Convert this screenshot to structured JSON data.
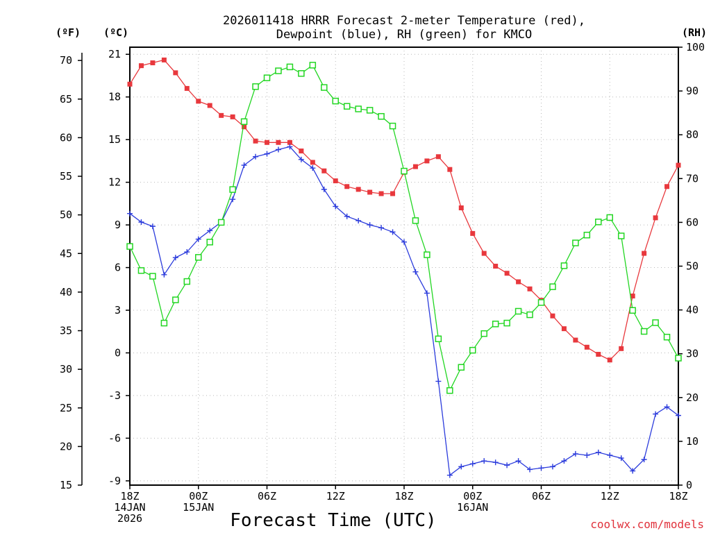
{
  "chart_data": {
    "type": "line",
    "title_lines": [
      "2026011418 HRRR Forecast 2-meter Temperature (red),",
      "Dewpoint (blue), RH (green) for KMCO"
    ],
    "xlabel": "Forecast Time (UTC)",
    "credit": "coolwx.com/models",
    "unit_labels": {
      "fahrenheit": "(ºF)",
      "celsius": "(ºC)",
      "rh": "(RH)"
    },
    "x_range_hours": [
      0,
      48
    ],
    "x_ticks": [
      {
        "hour": 0,
        "lines": [
          "18Z",
          "14JAN",
          "2026"
        ]
      },
      {
        "hour": 6,
        "lines": [
          "00Z",
          "15JAN"
        ]
      },
      {
        "hour": 12,
        "lines": [
          "06Z"
        ]
      },
      {
        "hour": 18,
        "lines": [
          "12Z"
        ]
      },
      {
        "hour": 24,
        "lines": [
          "18Z"
        ]
      },
      {
        "hour": 30,
        "lines": [
          "00Z",
          "16JAN"
        ]
      },
      {
        "hour": 36,
        "lines": [
          "06Z"
        ]
      },
      {
        "hour": 42,
        "lines": [
          "12Z"
        ]
      },
      {
        "hour": 48,
        "lines": [
          "18Z"
        ]
      }
    ],
    "celsius_axis": {
      "range": [
        -9.3,
        21.5
      ],
      "ticks": [
        21,
        18,
        15,
        12,
        9,
        6,
        3,
        0,
        -3,
        -6,
        -9
      ]
    },
    "fahrenheit_axis": {
      "range": [
        15,
        71
      ],
      "ticks": [
        70,
        65,
        60,
        55,
        50,
        45,
        40,
        35,
        30,
        25,
        20,
        15
      ]
    },
    "rh_axis": {
      "range": [
        0,
        100
      ],
      "ticks": [
        100,
        90,
        80,
        70,
        60,
        50,
        40,
        30,
        20,
        10,
        0
      ]
    },
    "series": [
      {
        "name": "2-meter Temperature",
        "units": "°C",
        "color": "#e8383d",
        "marker": "filled-square",
        "values": [
          18.9,
          20.2,
          20.4,
          20.6,
          19.7,
          18.6,
          17.7,
          17.4,
          16.7,
          16.6,
          15.9,
          14.9,
          14.8,
          14.8,
          14.8,
          14.2,
          13.4,
          12.8,
          12.1,
          11.7,
          11.5,
          11.3,
          11.2,
          11.2,
          12.7,
          13.1,
          13.5,
          13.8,
          12.9,
          10.2,
          8.4,
          7.0,
          6.1,
          5.6,
          5.0,
          4.5,
          3.7,
          2.6,
          1.7,
          0.9,
          0.4,
          -0.1,
          -0.5,
          0.3,
          4.0,
          7.0,
          9.5,
          11.7,
          13.2
        ]
      },
      {
        "name": "Dewpoint",
        "units": "°C",
        "color": "#2b3bdc",
        "marker": "plus",
        "values": [
          9.8,
          9.2,
          8.9,
          5.5,
          6.7,
          7.1,
          8.0,
          8.6,
          9.2,
          10.8,
          13.2,
          13.8,
          14.0,
          14.3,
          14.5,
          13.6,
          13.0,
          11.5,
          10.3,
          9.6,
          9.3,
          9.0,
          8.8,
          8.5,
          7.8,
          5.7,
          4.2,
          -2.0,
          -8.6,
          -8.0,
          -7.8,
          -7.6,
          -7.7,
          -7.9,
          -7.6,
          -8.2,
          -8.1,
          -8.0,
          -7.6,
          -7.1,
          -7.2,
          -7.0,
          -7.2,
          -7.4,
          -8.3,
          -7.5,
          -4.3,
          -3.8,
          -4.4
        ]
      },
      {
        "name": "Relative Humidity",
        "units": "%",
        "color": "#22d622",
        "marker": "open-square",
        "values": [
          54.5,
          49.0,
          47.7,
          37.0,
          42.3,
          46.5,
          52.0,
          55.5,
          60.0,
          67.5,
          83.0,
          91.0,
          93.0,
          94.6,
          95.5,
          94.0,
          95.9,
          90.8,
          87.7,
          86.5,
          85.9,
          85.6,
          84.2,
          82.0,
          71.7,
          60.4,
          52.6,
          33.4,
          21.6,
          26.9,
          30.8,
          34.6,
          36.8,
          37.0,
          39.7,
          38.9,
          41.7,
          45.3,
          50.1,
          55.3,
          57.1,
          60.1,
          61.1,
          56.9,
          39.9,
          35.1,
          37.1,
          33.8,
          29.0
        ]
      }
    ]
  }
}
